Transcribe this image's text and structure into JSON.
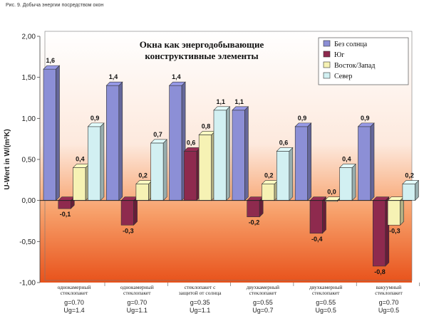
{
  "caption": "Рис. 9. Добыча энергии посредством окон",
  "chart_data": {
    "type": "bar",
    "title_lines": [
      "Окна как энергодобывающие",
      "конструктивные элементы"
    ],
    "ylabel": "U-Wert in W/(m²K)",
    "ylim": [
      -1.0,
      2.0
    ],
    "yticks": [
      "2,00",
      "1,50",
      "1,00",
      "0,50",
      "0,00",
      "-0,50",
      "-1,00"
    ],
    "grid": false,
    "legend_position": "top-right",
    "categories": [
      {
        "lines": [
          "однокамерный",
          "стеклопакет"
        ],
        "g": "g=0.70",
        "ug": "Ug=1.4"
      },
      {
        "lines": [
          "однокамерный",
          "стеклопакет"
        ],
        "g": "g=0.70",
        "ug": "Ug=1.1"
      },
      {
        "lines": [
          "стеклопакет с",
          "защитой от солнца"
        ],
        "g": "g=0.35",
        "ug": "Ug=1.1"
      },
      {
        "lines": [
          "двухкамерный",
          "стеклопакет"
        ],
        "g": "g=0.55",
        "ug": "Ug=0.7"
      },
      {
        "lines": [
          "двухкамерный",
          "стеклопакет"
        ],
        "g": "g=0.55",
        "ug": "Ug=0.5"
      },
      {
        "lines": [
          "вакуумный",
          "стеклопакет"
        ],
        "g": "g=0.70",
        "ug": "Ug=0.5"
      }
    ],
    "series": [
      {
        "name": "Без солнца",
        "color": "#8c8fd6",
        "values": [
          1.6,
          1.4,
          1.4,
          1.1,
          0.9,
          0.9
        ],
        "labels": [
          "1,6",
          "1,4",
          "1,4",
          "1,1",
          "0,9",
          "0,9"
        ]
      },
      {
        "name": "Юг",
        "color": "#8e2a4e",
        "values": [
          -0.1,
          -0.3,
          0.6,
          -0.2,
          -0.4,
          -0.8
        ],
        "labels": [
          "-0,1",
          "-0,3",
          "0,6",
          "-0,2",
          "-0,4",
          "-0,8"
        ]
      },
      {
        "name": "Восток/Запад",
        "color": "#f6f2b4",
        "values": [
          0.4,
          0.2,
          0.8,
          0.2,
          0.0,
          -0.3
        ],
        "labels": [
          "0,4",
          "0,2",
          "0,8",
          "0,2",
          "0,0",
          "-0,3"
        ]
      },
      {
        "name": "Север",
        "color": "#d2f0f2",
        "values": [
          0.9,
          0.7,
          1.1,
          0.6,
          0.4,
          0.2
        ],
        "labels": [
          "0,9",
          "0,7",
          "1,1",
          "0,6",
          "0,4",
          "0,2"
        ]
      }
    ]
  }
}
